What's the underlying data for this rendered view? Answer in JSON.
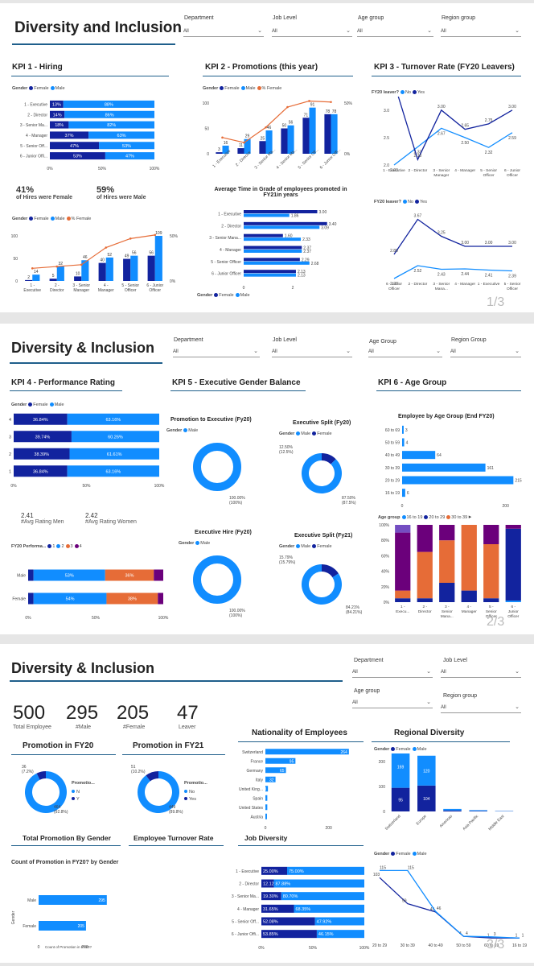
{
  "pages": [
    {
      "title": "Diversity and Inclusion",
      "slicers": [
        {
          "label": "Department",
          "value": "All"
        },
        {
          "label": "Job Level",
          "value": "All"
        },
        {
          "label": "Age group",
          "value": "All"
        },
        {
          "label": "Region group",
          "value": "All"
        }
      ],
      "kpi1": {
        "title": "KPI 1 - Hiring",
        "stat_female": "41%",
        "stat_female_label": "of Hires were Female",
        "stat_male": "59%",
        "stat_male_label": "of Hires were Male"
      },
      "kpi2": {
        "title": "KPI 2 - Promotions (this year)",
        "sub_title": "Average Time in Grade of employees promoted in FY21in years"
      },
      "kpi3": {
        "title": "KPI 3 - Turnover Rate (FY20 Leavers)",
        "legend_title": "FY20 leaver?",
        "legend_title2": "FY20 leaver?"
      },
      "page_number": "1/3"
    },
    {
      "title": "Diversity & Inclusion",
      "slicers": [
        {
          "label": "Department",
          "value": "All"
        },
        {
          "label": "Job Level",
          "value": "All"
        },
        {
          "label": "Age Group",
          "value": "All"
        },
        {
          "label": "Region Group",
          "value": "All"
        }
      ],
      "kpi4": {
        "title": "KPI 4 - Performance Rating",
        "avg_men": "2.41",
        "avg_men_label": "#Avg Rating Men",
        "avg_women": "2.42",
        "avg_women_label": "#Avg Rating Women",
        "perf_legend_title": "FY20 Performa..."
      },
      "kpi5": {
        "title": "KPI 5 - Executive Gender Balance",
        "c1": "Promotion to Executive (Fy20)",
        "c2": "Executive Split (Fy20)",
        "c3": "Executive Hire (Fy20)",
        "c4": "Executive Split (Fy21)"
      },
      "kpi6": {
        "title": "KPI 6 - Age Group",
        "bar_title": "Employee by Age Group (End FY20)",
        "legend_title": "Age group"
      },
      "page_number": "2/3"
    },
    {
      "title": "Diversity & Inclusion",
      "slicers": [
        {
          "label": "Department",
          "value": "All"
        },
        {
          "label": "Job Level",
          "value": "All"
        },
        {
          "label": "Age group",
          "value": "All"
        },
        {
          "label": "Region group",
          "value": "All"
        }
      ],
      "cards": [
        {
          "value": "500",
          "label": "Total Employee"
        },
        {
          "value": "295",
          "label": "#Male"
        },
        {
          "value": "205",
          "label": "#Female"
        },
        {
          "value": "47",
          "label": "Leaver"
        }
      ],
      "titles": {
        "promo20": "Promotion in FY20",
        "promo21": "Promotion in FY21",
        "nationality": "Nationality of Employees",
        "regional": "Regional Diversity",
        "total_promo": "Total Promotion By Gender",
        "turnover": "Employee Turnover Rate",
        "job": "Job Diversity"
      },
      "promo_gender_title": "Count of Promotion in FY20? by Gender",
      "promo_gender_xlabel": "Count of Promotion in FY20?",
      "promo_gender_ylabel": "Gender",
      "promo_legend_title": "Promotio...",
      "page_number": "3/3"
    }
  ],
  "legend": {
    "gender": "Gender",
    "female": "Female",
    "male": "Male",
    "pct_female": "% Female",
    "no": "No",
    "yes": "Yes",
    "n": "N",
    "y": "Y"
  },
  "colors": {
    "female": "#12239e",
    "male": "#118dff",
    "pct_female": "#e66c37",
    "accent": "#1f5f8b",
    "purple": "#6b007b",
    "violet": "#744ec2"
  },
  "chart_data": [
    {
      "id": "kpi1_hiring_split",
      "type": "bar",
      "orientation": "horizontal",
      "stacked": "100%",
      "categories": [
        "1 - Executive",
        "2 - Director",
        "3 - Senior Ma...",
        "4 - Manager",
        "5 - Senior Off...",
        "6 - Junior Offi..."
      ],
      "series": [
        {
          "name": "Female",
          "values": [
            13,
            14,
            18,
            37,
            47,
            53
          ]
        },
        {
          "name": "Male",
          "values": [
            88,
            86,
            82,
            63,
            53,
            47
          ]
        }
      ],
      "x_ticks": [
        "0%",
        "50%",
        "100%"
      ]
    },
    {
      "id": "kpi1_hires",
      "type": "bar",
      "categories": [
        "1 - Executive",
        "2 - Director",
        "3 - Senior Manager",
        "4 - Manager",
        "5 - Senior Officer",
        "6 - Junior Officer"
      ],
      "series": [
        {
          "name": "Female",
          "values": [
            2,
            5,
            10,
            40,
            49,
            56
          ]
        },
        {
          "name": "Male",
          "values": [
            14,
            32,
            46,
            52,
            56,
            109
          ]
        },
        {
          "name": "% Female",
          "values": [
            14,
            16,
            18,
            37,
            47,
            51
          ]
        }
      ],
      "ylim": [
        0,
        100
      ],
      "y_ticks": [
        "0",
        "50",
        "100"
      ],
      "y2_ticks": [
        "0%",
        "50%"
      ]
    },
    {
      "id": "kpi2_promotions",
      "type": "bar",
      "categories": [
        "1 - Executive",
        "2 - Director",
        "3 - Senior Ma...",
        "4 - Senior Ma...",
        "5 - Senior Off...",
        "6 - Junior Offi..."
      ],
      "series": [
        {
          "name": "Female",
          "values": [
            3,
            11,
            25,
            50,
            71,
            78
          ]
        },
        {
          "name": "Male",
          "values": [
            16,
            29,
            46,
            56,
            91,
            78
          ]
        },
        {
          "name": "% Female",
          "values": [
            16,
            11,
            26,
            46,
            52,
            51
          ]
        }
      ],
      "y_ticks": [
        "0",
        "50",
        "100"
      ],
      "y2_ticks": [
        "0%",
        "50%"
      ]
    },
    {
      "id": "kpi2_time_in_grade",
      "type": "bar",
      "orientation": "horizontal",
      "categories": [
        "1 - Executive",
        "2 - Director",
        "3 - Senior Mana...",
        "4 - Manager",
        "5 - Senior Officer",
        "6 - Junior Officer"
      ],
      "series": [
        {
          "name": "Female",
          "values": [
            3.0,
            3.4,
            1.6,
            2.37,
            2.29,
            2.13
          ]
        },
        {
          "name": "Male",
          "values": [
            1.86,
            3.09,
            2.33,
            2.37,
            2.68,
            2.13
          ]
        }
      ],
      "x_ticks": [
        "0",
        "2"
      ]
    },
    {
      "id": "kpi3_turnover_rate",
      "type": "line",
      "categories": [
        "1 - Executive",
        "2 - Director",
        "3 - Senior Manager",
        "4 - Manager",
        "5 - Senior Officer",
        "6 - Junior Officer"
      ],
      "series": [
        {
          "name": "No",
          "values": [
            2.0,
            2.33,
            2.67,
            2.5,
            2.32,
            2.59
          ]
        },
        {
          "name": "Yes",
          "values": [
            3.5,
            2.1,
            3.0,
            2.65,
            2.75,
            3.0
          ]
        }
      ],
      "y_ticks": [
        "2.0",
        "2.5",
        "3.0"
      ]
    },
    {
      "id": "kpi3_turnover_rate_2",
      "type": "line",
      "categories": [
        "6 - Junior Officer",
        "2 - Director",
        "3 - Senior Mana...",
        "4 - Manager",
        "1 - Executive",
        "5 - Senior Officer"
      ],
      "series": [
        {
          "name": "No",
          "values": [
            2.2,
            2.52,
            2.43,
            2.44,
            2.41,
            2.39
          ]
        },
        {
          "name": "Yes",
          "values": [
            2.8,
            3.67,
            3.25,
            3.0,
            3.0,
            3.0
          ]
        }
      ]
    },
    {
      "id": "kpi4_performance_rating",
      "type": "bar",
      "orientation": "horizontal",
      "stacked": "100%",
      "categories": [
        "4",
        "3",
        "2",
        "1"
      ],
      "series": [
        {
          "name": "Female",
          "values": [
            36.84,
            39.74,
            38.39,
            36.84
          ]
        },
        {
          "name": "Male",
          "values": [
            63.16,
            60.26,
            61.61,
            63.16
          ]
        }
      ],
      "x_ticks": [
        "0%",
        "50%",
        "100%"
      ]
    },
    {
      "id": "kpi4_perf_by_gender",
      "type": "bar",
      "orientation": "horizontal",
      "stacked": "100%",
      "categories": [
        "Male",
        "Female"
      ],
      "series": [
        {
          "name": "1",
          "values": [
            4,
            4
          ]
        },
        {
          "name": "2",
          "values": [
            53,
            54
          ]
        },
        {
          "name": "3",
          "values": [
            36,
            38
          ]
        },
        {
          "name": "4",
          "values": [
            7,
            4
          ]
        }
      ],
      "x_ticks": [
        "0%",
        "50%",
        "100%"
      ]
    },
    {
      "id": "kpi5_promo_exec",
      "type": "pie",
      "donut": true,
      "labels": [
        "Male"
      ],
      "values": [
        100
      ],
      "data_labels": [
        "100.00% (100%)"
      ]
    },
    {
      "id": "kpi5_exec_split_fy20",
      "type": "pie",
      "donut": true,
      "labels": [
        "Female",
        "Male"
      ],
      "values": [
        12.5,
        87.5
      ],
      "data_labels": [
        "12.50% (12.5%)",
        "87.50% (87.5%)"
      ]
    },
    {
      "id": "kpi5_exec_hire",
      "type": "pie",
      "donut": true,
      "labels": [
        "Male"
      ],
      "values": [
        100
      ],
      "data_labels": [
        "100.00% (100%)"
      ]
    },
    {
      "id": "kpi5_exec_split_fy21",
      "type": "pie",
      "donut": true,
      "labels": [
        "Female",
        "Male"
      ],
      "values": [
        15.79,
        84.21
      ],
      "data_labels": [
        "15.79% (15.79%)",
        "84.21% (84.21%)"
      ]
    },
    {
      "id": "kpi6_age_group",
      "type": "bar",
      "orientation": "horizontal",
      "categories": [
        "60 to 69",
        "50 to 59",
        "40 to 49",
        "30 to 39",
        "20 to 29",
        "16 to 19"
      ],
      "values": [
        3,
        4,
        64,
        161,
        215,
        6
      ],
      "x_ticks": [
        "0",
        "200"
      ]
    },
    {
      "id": "kpi6_age_stack",
      "type": "bar",
      "stacked": "100%",
      "categories": [
        "1 - Execu...",
        "2 - Director",
        "3 - Senior Mana...",
        "4 - Manager",
        "5 - Senior Officer",
        "6 - Junior Officer"
      ],
      "series": [
        {
          "name": "16 to 19",
          "values": [
            0,
            0,
            0,
            0,
            0,
            2
          ]
        },
        {
          "name": "20 to 29",
          "values": [
            5,
            5,
            25,
            15,
            5,
            93
          ]
        },
        {
          "name": "30 to 39",
          "values": [
            10,
            60,
            55,
            85,
            70,
            0
          ]
        },
        {
          "name": "40 to 49",
          "values": [
            75,
            35,
            20,
            0,
            25,
            5
          ]
        },
        {
          "name": "50 to 59",
          "values": [
            10,
            0,
            0,
            0,
            0,
            0
          ]
        }
      ],
      "y_ticks": [
        "0%",
        "20%",
        "40%",
        "60%",
        "80%",
        "100%"
      ]
    },
    {
      "id": "promo_fy20",
      "type": "pie",
      "donut": true,
      "labels": [
        "N",
        "Y"
      ],
      "values": [
        92.8,
        7.2
      ],
      "data_labels": [
        "464 (92.8%)",
        "36 (7.2%)"
      ]
    },
    {
      "id": "promo_fy21",
      "type": "pie",
      "donut": true,
      "labels": [
        "No",
        "Yes"
      ],
      "values": [
        89.8,
        10.2
      ],
      "data_labels": [
        "449 (89.8%)",
        "51 (10.2%)"
      ]
    },
    {
      "id": "nationality",
      "type": "bar",
      "orientation": "horizontal",
      "categories": [
        "Switzerland",
        "France",
        "Germany",
        "Italy",
        "United King...",
        "Spain",
        "United States",
        "Austria"
      ],
      "values": [
        264,
        95,
        65,
        32,
        8,
        6,
        6,
        5
      ],
      "x_ticks": [
        "0",
        "200"
      ]
    },
    {
      "id": "regional_diversity",
      "type": "bar",
      "stacked": true,
      "categories": [
        "Switzerland",
        "Europe",
        "Americas",
        "Asia Pacific",
        "Middle East"
      ],
      "series": [
        {
          "name": "Female",
          "values": [
            95,
            104,
            4,
            2,
            1
          ]
        },
        {
          "name": "Male",
          "values": [
            169,
            120,
            6,
            3,
            1
          ]
        }
      ],
      "y_ticks": [
        "0",
        "100",
        "200"
      ]
    },
    {
      "id": "total_promo_gender",
      "type": "bar",
      "orientation": "horizontal",
      "categories": [
        "Male",
        "Female"
      ],
      "values": [
        295,
        205
      ],
      "x_ticks": [
        "0",
        "200"
      ]
    },
    {
      "id": "job_diversity",
      "type": "bar",
      "orientation": "horizontal",
      "stacked": "100%",
      "categories": [
        "1 - Executive",
        "2 - Director",
        "3 - Senior Ma...",
        "4 - Manager",
        "5 - Senior Off...",
        "6 - Junior Offi..."
      ],
      "series": [
        {
          "name": "Female",
          "values": [
            25.0,
            12.12,
            19.3,
            31.65,
            52.08,
            53.85
          ]
        },
        {
          "name": "Male",
          "values": [
            75.0,
            87.88,
            80.7,
            68.35,
            47.92,
            46.15
          ]
        }
      ],
      "x_ticks": [
        "0%",
        "50%",
        "100%"
      ]
    },
    {
      "id": "turnover_by_age",
      "type": "line",
      "categories": [
        "20 to 29",
        "30 to 39",
        "40 to 49",
        "50 to 59",
        "60 to 69",
        "16 to 19"
      ],
      "series": [
        {
          "name": "Female",
          "values": [
            103,
            59,
            45,
            4,
            1,
            1
          ]
        },
        {
          "name": "Male",
          "values": [
            115,
            115,
            46,
            4,
            3,
            1
          ]
        }
      ]
    }
  ]
}
